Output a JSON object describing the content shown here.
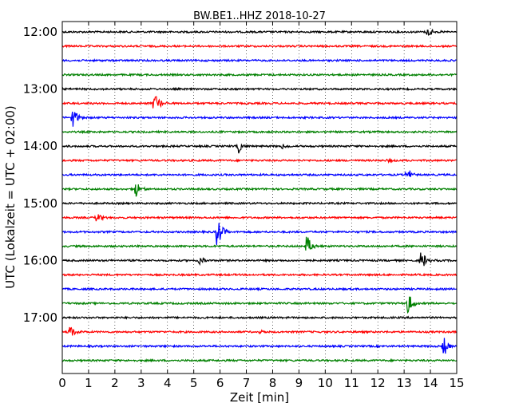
{
  "chart_data": {
    "type": "line",
    "subtype": "dayplot",
    "title": "BW.BE1..HHZ 2018-10-27",
    "xlabel": "Zeit  [min]",
    "ylabel": "UTC (Lokalzeit = UTC + 02:00)",
    "xlim": [
      0,
      15
    ],
    "x_ticks": [
      "0",
      "1",
      "2",
      "3",
      "4",
      "5",
      "6",
      "7",
      "8",
      "9",
      "10",
      "11",
      "12",
      "13",
      "14",
      "15"
    ],
    "y_ticks": [
      "12:00",
      "13:00",
      "14:00",
      "15:00",
      "16:00",
      "17:00"
    ],
    "grid": "vertical dotted",
    "color_cycle": [
      "#000000",
      "#ff0000",
      "#0000ff",
      "#008000"
    ],
    "row_interval_min": 15,
    "rows": [
      {
        "start": "12:00",
        "color": "#000000",
        "events": [
          {
            "t": 13.9,
            "amp": 0.28
          }
        ]
      },
      {
        "start": "12:15",
        "color": "#ff0000",
        "events": []
      },
      {
        "start": "12:30",
        "color": "#0000ff",
        "events": []
      },
      {
        "start": "12:45",
        "color": "#008000",
        "events": []
      },
      {
        "start": "13:00",
        "color": "#000000",
        "events": []
      },
      {
        "start": "13:15",
        "color": "#ff0000",
        "events": [
          {
            "t": 3.5,
            "amp": 0.75
          }
        ]
      },
      {
        "start": "13:30",
        "color": "#0000ff",
        "events": [
          {
            "t": 0.4,
            "amp": 0.6
          }
        ]
      },
      {
        "start": "13:45",
        "color": "#008000",
        "events": []
      },
      {
        "start": "14:00",
        "color": "#000000",
        "events": [
          {
            "t": 6.7,
            "amp": 0.35
          },
          {
            "t": 8.35,
            "amp": 0.12
          }
        ]
      },
      {
        "start": "14:15",
        "color": "#ff0000",
        "events": [
          {
            "t": 12.4,
            "amp": 0.1
          }
        ]
      },
      {
        "start": "14:30",
        "color": "#0000ff",
        "events": [
          {
            "t": 13.1,
            "amp": 0.4
          }
        ]
      },
      {
        "start": "14:45",
        "color": "#008000",
        "events": [
          {
            "t": 2.8,
            "amp": 0.45
          }
        ]
      },
      {
        "start": "15:00",
        "color": "#000000",
        "events": []
      },
      {
        "start": "15:15",
        "color": "#ff0000",
        "events": [
          {
            "t": 1.3,
            "amp": 0.3
          }
        ]
      },
      {
        "start": "15:30",
        "color": "#0000ff",
        "events": [
          {
            "t": 5.9,
            "amp": 0.95
          }
        ]
      },
      {
        "start": "15:45",
        "color": "#008000",
        "events": [
          {
            "t": 9.3,
            "amp": 0.6
          }
        ]
      },
      {
        "start": "16:00",
        "color": "#000000",
        "events": [
          {
            "t": 5.2,
            "amp": 0.25
          },
          {
            "t": 13.65,
            "amp": 0.55
          }
        ]
      },
      {
        "start": "16:15",
        "color": "#ff0000",
        "events": []
      },
      {
        "start": "16:30",
        "color": "#0000ff",
        "events": []
      },
      {
        "start": "16:45",
        "color": "#008000",
        "events": [
          {
            "t": 13.15,
            "amp": 0.65
          }
        ]
      },
      {
        "start": "17:00",
        "color": "#000000",
        "events": []
      },
      {
        "start": "17:15",
        "color": "#ff0000",
        "events": [
          {
            "t": 0.3,
            "amp": 0.45
          },
          {
            "t": 7.5,
            "amp": 0.1
          }
        ]
      },
      {
        "start": "17:30",
        "color": "#0000ff",
        "events": [
          {
            "t": 14.5,
            "amp": 0.55
          }
        ]
      },
      {
        "start": "17:45",
        "color": "#008000",
        "events": []
      }
    ]
  }
}
